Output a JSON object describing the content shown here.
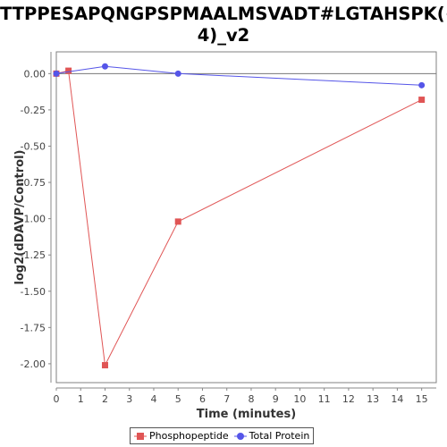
{
  "chart_data": {
    "type": "line",
    "title_lines": [
      "TTPPESAPQNGPSPMAALMSVADT#LGTAHSPK(+",
      "4)_v2"
    ],
    "xlabel": "Time (minutes)",
    "ylabel": "log2(dDAVP/Control)",
    "xlim": [
      0,
      15.6
    ],
    "ylim": [
      -2.13,
      0.15
    ],
    "x_ticks": [
      0,
      1,
      2,
      3,
      4,
      5,
      6,
      7,
      8,
      9,
      10,
      11,
      12,
      13,
      14,
      15
    ],
    "y_ticks": [
      0.0,
      -0.25,
      -0.5,
      -0.75,
      -1.0,
      -1.25,
      -1.5,
      -1.75,
      -2.0
    ],
    "y_tick_labels": [
      "0.00",
      "-0.25",
      "-0.50",
      "-0.75",
      "-1.00",
      "-1.25",
      "-1.50",
      "-1.75",
      "-2.00"
    ],
    "reference_line_y": 0,
    "legend_position": "bottom",
    "series": [
      {
        "name": "Phosphopeptide",
        "color": "#e05555",
        "marker": "square",
        "x": [
          0,
          0.5,
          2,
          5,
          15
        ],
        "y": [
          0.0,
          0.02,
          -2.01,
          -1.02,
          -0.18
        ]
      },
      {
        "name": "Total Protein",
        "color": "#5555e8",
        "marker": "circle",
        "x": [
          0,
          2,
          5,
          15
        ],
        "y": [
          0.0,
          0.05,
          0.0,
          -0.08
        ]
      }
    ]
  }
}
